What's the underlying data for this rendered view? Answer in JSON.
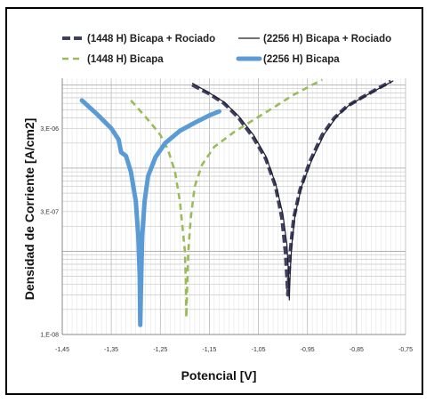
{
  "chart_data": {
    "type": "line",
    "xlabel": "Potencial [V]",
    "ylabel": "Densidad de Corriente [A/cm2]",
    "x_ticks": [
      "-1,45",
      "-1,35",
      "-1,25",
      "-1,15",
      "-1,05",
      "-0,95",
      "-0,85",
      "-0,75"
    ],
    "y_ticks": [
      "1,E-08",
      "3,E-07",
      "3,E-06"
    ],
    "xlim": [
      -1.45,
      -0.75
    ],
    "ylim": [
      1e-08,
      1.2e-05
    ],
    "y_scale": "log",
    "grid": true,
    "legend_position": "top",
    "series": [
      {
        "name": "(1448 H) Bicapa + Rociado",
        "color": "#3f3f5f",
        "style": "dashed-thick",
        "points": [
          [
            -1.185,
            1e-05
          ],
          [
            -1.15,
            7.8e-06
          ],
          [
            -1.12,
            6e-06
          ],
          [
            -1.09,
            4e-06
          ],
          [
            -1.06,
            2.3e-06
          ],
          [
            -1.035,
            1.3e-06
          ],
          [
            -1.015,
            6e-07
          ],
          [
            -1.002,
            2.5e-07
          ],
          [
            -0.995,
            1e-07
          ],
          [
            -0.992,
            5e-08
          ],
          [
            -0.99,
            3e-08
          ],
          [
            -0.988,
            5e-08
          ],
          [
            -0.985,
            1e-07
          ],
          [
            -0.978,
            2.5e-07
          ],
          [
            -0.965,
            5.5e-07
          ],
          [
            -0.945,
            1.2e-06
          ],
          [
            -0.92,
            2.5e-06
          ],
          [
            -0.895,
            4e-06
          ],
          [
            -0.87,
            5.5e-06
          ],
          [
            -0.84,
            7e-06
          ],
          [
            -0.81,
            8.8e-06
          ],
          [
            -0.78,
            1.1e-05
          ]
        ]
      },
      {
        "name": "(2256 H) Bicapa + Rociado",
        "color": "#1e1e32",
        "style": "solid-thin",
        "points": [
          [
            -1.185,
            1.05e-05
          ],
          [
            -1.15,
            8e-06
          ],
          [
            -1.12,
            6.2e-06
          ],
          [
            -1.09,
            4.2e-06
          ],
          [
            -1.06,
            2.5e-06
          ],
          [
            -1.035,
            1.4e-06
          ],
          [
            -1.015,
            6.5e-07
          ],
          [
            -1.0,
            2.8e-07
          ],
          [
            -0.992,
            1.2e-07
          ],
          [
            -0.989,
            6e-08
          ],
          [
            -0.987,
            2.6e-08
          ],
          [
            -0.985,
            6e-08
          ],
          [
            -0.982,
            1.2e-07
          ],
          [
            -0.975,
            2.8e-07
          ],
          [
            -0.962,
            6e-07
          ],
          [
            -0.94,
            1.3e-06
          ],
          [
            -0.915,
            2.6e-06
          ],
          [
            -0.89,
            4.2e-06
          ],
          [
            -0.865,
            5.7e-06
          ],
          [
            -0.835,
            7.2e-06
          ],
          [
            -0.805,
            9e-06
          ],
          [
            -0.775,
            1.12e-05
          ]
        ]
      },
      {
        "name": "(1448 H) Bicapa",
        "color": "#9bbb59",
        "style": "dashed",
        "points": [
          [
            -1.31,
            6.5e-06
          ],
          [
            -1.29,
            4.8e-06
          ],
          [
            -1.27,
            3.5e-06
          ],
          [
            -1.25,
            2.5e-06
          ],
          [
            -1.235,
            1.7e-06
          ],
          [
            -1.22,
            9e-07
          ],
          [
            -1.21,
            4e-07
          ],
          [
            -1.205,
            2e-07
          ],
          [
            -1.2,
            1e-07
          ],
          [
            -1.198,
            4e-08
          ],
          [
            -1.197,
            1.6e-08
          ],
          [
            -1.195,
            4e-08
          ],
          [
            -1.193,
            1e-07
          ],
          [
            -1.188,
            2.5e-07
          ],
          [
            -1.18,
            6e-07
          ],
          [
            -1.165,
            1.1e-06
          ],
          [
            -1.14,
            1.8e-06
          ],
          [
            -1.1,
            2.7e-06
          ],
          [
            -1.06,
            3.8e-06
          ],
          [
            -1.02,
            5.3e-06
          ],
          [
            -0.98,
            7.5e-06
          ],
          [
            -0.94,
            1e-05
          ],
          [
            -0.92,
            1.15e-05
          ]
        ]
      },
      {
        "name": "(2256 H) Bicapa",
        "color": "#5b9bd5",
        "style": "solid-thick",
        "points": [
          [
            -1.41,
            6.5e-06
          ],
          [
            -1.38,
            4.5e-06
          ],
          [
            -1.35,
            3e-06
          ],
          [
            -1.335,
            2.2e-06
          ],
          [
            -1.33,
            1.55e-06
          ],
          [
            -1.32,
            1.4e-06
          ],
          [
            -1.31,
            9e-07
          ],
          [
            -1.3,
            4e-07
          ],
          [
            -1.295,
            1.5e-07
          ],
          [
            -1.292,
            5e-08
          ],
          [
            -1.291,
            1.3e-08
          ],
          [
            -1.289,
            5e-08
          ],
          [
            -1.287,
            1.5e-07
          ],
          [
            -1.282,
            4e-07
          ],
          [
            -1.275,
            8e-07
          ],
          [
            -1.26,
            1.35e-06
          ],
          [
            -1.24,
            2e-06
          ],
          [
            -1.21,
            2.8e-06
          ],
          [
            -1.18,
            3.5e-06
          ],
          [
            -1.15,
            4.3e-06
          ],
          [
            -1.13,
            4.8e-06
          ]
        ]
      }
    ]
  }
}
